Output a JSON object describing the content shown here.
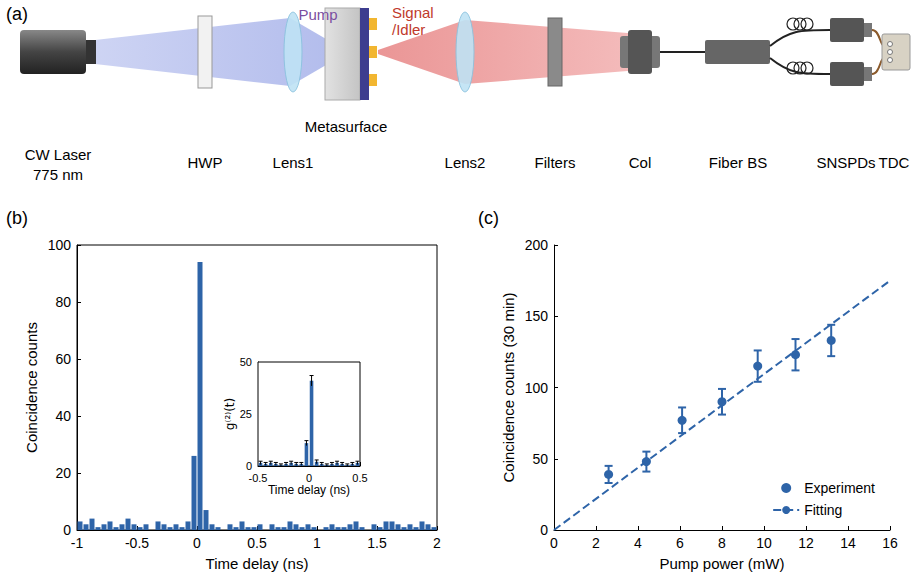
{
  "diagram": {
    "panel": "(a)",
    "beam_labels": {
      "pump": "Pump",
      "signal_idler": [
        "Signal",
        "/Idler"
      ]
    },
    "components": [
      {
        "label": [
          "CW Laser",
          "775 nm"
        ]
      },
      {
        "label": [
          "HWP"
        ]
      },
      {
        "label": [
          "Lens1"
        ]
      },
      {
        "label": [
          "Metasurface"
        ]
      },
      {
        "label": [
          "Lens2"
        ]
      },
      {
        "label": [
          "Filters"
        ]
      },
      {
        "label": [
          "Col"
        ]
      },
      {
        "label": [
          "Fiber BS"
        ]
      },
      {
        "label": [
          "SNSPDs"
        ]
      },
      {
        "label": [
          "TDC"
        ]
      }
    ]
  },
  "chart_data": [
    {
      "panel": "(b)",
      "type": "histogram",
      "x_label": "Time delay (ns)",
      "y_label": "Coincidence counts",
      "bins": [
        -1,
        -0.95,
        -0.9,
        -0.85,
        -0.8,
        -0.75,
        -0.7,
        -0.65,
        -0.6,
        -0.55,
        -0.5,
        -0.45,
        -0.4,
        -0.35,
        -0.3,
        -0.25,
        -0.2,
        -0.15,
        -0.1,
        -0.05,
        0,
        0.05,
        0.1,
        0.15,
        0.2,
        0.25,
        0.3,
        0.35,
        0.4,
        0.45,
        0.5,
        0.55,
        0.6,
        0.65,
        0.7,
        0.75,
        0.8,
        0.85,
        0.9,
        0.95,
        1,
        1.05,
        1.1,
        1.15,
        1.2,
        1.25,
        1.3,
        1.35,
        1.4,
        1.45,
        1.5,
        1.55,
        1.6,
        1.65,
        1.7,
        1.75,
        1.8,
        1.85,
        1.9,
        1.95,
        2
      ],
      "counts": [
        3,
        2,
        4,
        1,
        2,
        3,
        1,
        2,
        4,
        2,
        1,
        2,
        0,
        3,
        2,
        1,
        2,
        1,
        3,
        26,
        94,
        7,
        2,
        1,
        0,
        2,
        1,
        3,
        1,
        1,
        2,
        0,
        2,
        1,
        1,
        3,
        2,
        1,
        2,
        1,
        0,
        1,
        2,
        1,
        1,
        2,
        3,
        1,
        0,
        2,
        1,
        3,
        3,
        2,
        1,
        2,
        1,
        3,
        2,
        1
      ],
      "color": "#2e64a8",
      "xlim": [
        -1,
        2
      ],
      "xticks": [
        -1,
        -0.5,
        0,
        0.5,
        1,
        1.5,
        2
      ],
      "ylim": [
        0,
        100
      ],
      "yticks": [
        0,
        20,
        40,
        60,
        80,
        100
      ],
      "grid": false
    },
    {
      "type": "bar",
      "x_label": "Time delay (ns)",
      "y_label": "g⁽²⁾(t)",
      "bins": [
        -0.5,
        -0.45,
        -0.4,
        -0.35,
        -0.3,
        -0.25,
        -0.2,
        -0.15,
        -0.1,
        -0.05,
        0,
        0.05,
        0.1,
        0.15,
        0.2,
        0.25,
        0.3,
        0.35,
        0.4,
        0.45,
        0.5
      ],
      "values": [
        1.5,
        1,
        1.5,
        1,
        0.5,
        1,
        1.5,
        1,
        1,
        11,
        41,
        2,
        1,
        0.5,
        1,
        1.5,
        1,
        0.5,
        1,
        1.5
      ],
      "errors": [
        0.8,
        0.7,
        0.8,
        0.7,
        0.5,
        0.7,
        0.8,
        0.7,
        0.7,
        1.2,
        2.5,
        0.9,
        0.7,
        0.5,
        0.7,
        0.8,
        0.7,
        0.5,
        0.7,
        0.8
      ],
      "color": "#2e64a8",
      "xlim": [
        -0.5,
        0.5
      ],
      "xticks": [
        -0.5,
        0,
        0.5
      ],
      "ylim": [
        0,
        50
      ],
      "yticks": [
        0,
        25,
        50
      ],
      "grid": false
    },
    {
      "panel": "(c)",
      "type": "scatter",
      "x_label": "Pump power (mW)",
      "y_label": "Coincidence counts (30 min)",
      "series": [
        {
          "name": "Experiment",
          "type": "scatter",
          "marker": "circle",
          "color": "#2e64a8",
          "x": [
            2.6,
            4.4,
            6.1,
            8.0,
            9.7,
            11.5,
            13.2
          ],
          "values": [
            39,
            48,
            77,
            90,
            115,
            123,
            133
          ],
          "errors": [
            6,
            7,
            9,
            9,
            11,
            11,
            11
          ]
        },
        {
          "name": "Fitting",
          "type": "line",
          "line_style": "dashed",
          "color": "#2e64a8",
          "x": [
            0,
            16
          ],
          "values": [
            0,
            175
          ]
        }
      ],
      "xlim": [
        0,
        16
      ],
      "xticks": [
        0,
        2,
        4,
        6,
        8,
        10,
        12,
        14,
        16
      ],
      "ylim": [
        0,
        200
      ],
      "yticks": [
        0,
        50,
        100,
        150,
        200
      ],
      "legend": "lower right",
      "grid": false
    }
  ]
}
